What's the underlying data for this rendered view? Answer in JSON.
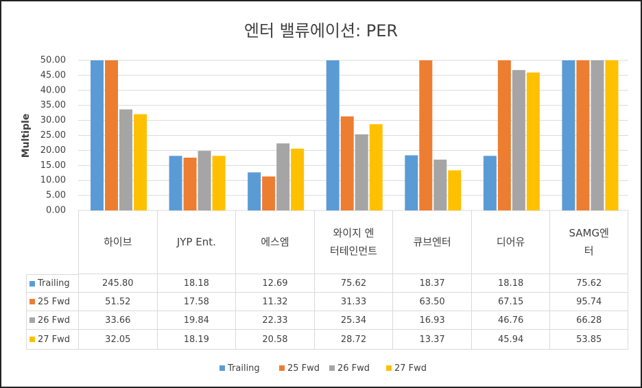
{
  "chart_data": {
    "type": "bar",
    "title": "엔터 밸류에이션: PER",
    "y_label": "Multiple",
    "categories": [
      "하이브",
      "JYP Ent.",
      "에스엠",
      "와이지 엔터테인먼트",
      "큐브엔터",
      "디어유",
      "SAMG엔터"
    ],
    "series": [
      {
        "name": "Trailing",
        "color": "#5b9bd5",
        "values": [
          245.8,
          18.18,
          12.69,
          75.62,
          18.37,
          18.18,
          75.62
        ],
        "value_labels": [
          "245.80",
          "18.18",
          "12.69",
          "75.62",
          "18.37",
          "18.18",
          "75.62"
        ]
      },
      {
        "name": "25 Fwd",
        "color": "#ed7d31",
        "values": [
          51.52,
          17.58,
          11.32,
          31.33,
          63.5,
          67.15,
          95.74
        ],
        "value_labels": [
          "51.52",
          "17.58",
          "11.32",
          "31.33",
          "63.50",
          "67.15",
          "95.74"
        ]
      },
      {
        "name": "26 Fwd",
        "color": "#a5a5a5",
        "values": [
          33.66,
          19.84,
          22.33,
          25.34,
          16.93,
          46.76,
          66.28
        ],
        "value_labels": [
          "33.66",
          "19.84",
          "22.33",
          "25.34",
          "16.93",
          "46.76",
          "66.28"
        ]
      },
      {
        "name": "27 Fwd",
        "color": "#ffc000",
        "values": [
          32.05,
          18.19,
          20.58,
          28.72,
          13.37,
          45.94,
          53.85
        ],
        "value_labels": [
          "32.05",
          "18.19",
          "20.58",
          "28.72",
          "13.37",
          "45.94",
          "53.85"
        ]
      }
    ],
    "ylim": [
      0,
      50
    ],
    "yticks": [
      {
        "value": 0,
        "label": "0.00"
      },
      {
        "value": 5,
        "label": "5.00"
      },
      {
        "value": 10,
        "label": "10.00"
      },
      {
        "value": 15,
        "label": "15.00"
      },
      {
        "value": 20,
        "label": "20.00"
      },
      {
        "value": 25,
        "label": "25.00"
      },
      {
        "value": 30,
        "label": "30.00"
      },
      {
        "value": 35,
        "label": "35.00"
      },
      {
        "value": 40,
        "label": "40.00"
      },
      {
        "value": 45,
        "label": "45.00"
      },
      {
        "value": 50,
        "label": "50.00"
      }
    ],
    "grid": true
  }
}
